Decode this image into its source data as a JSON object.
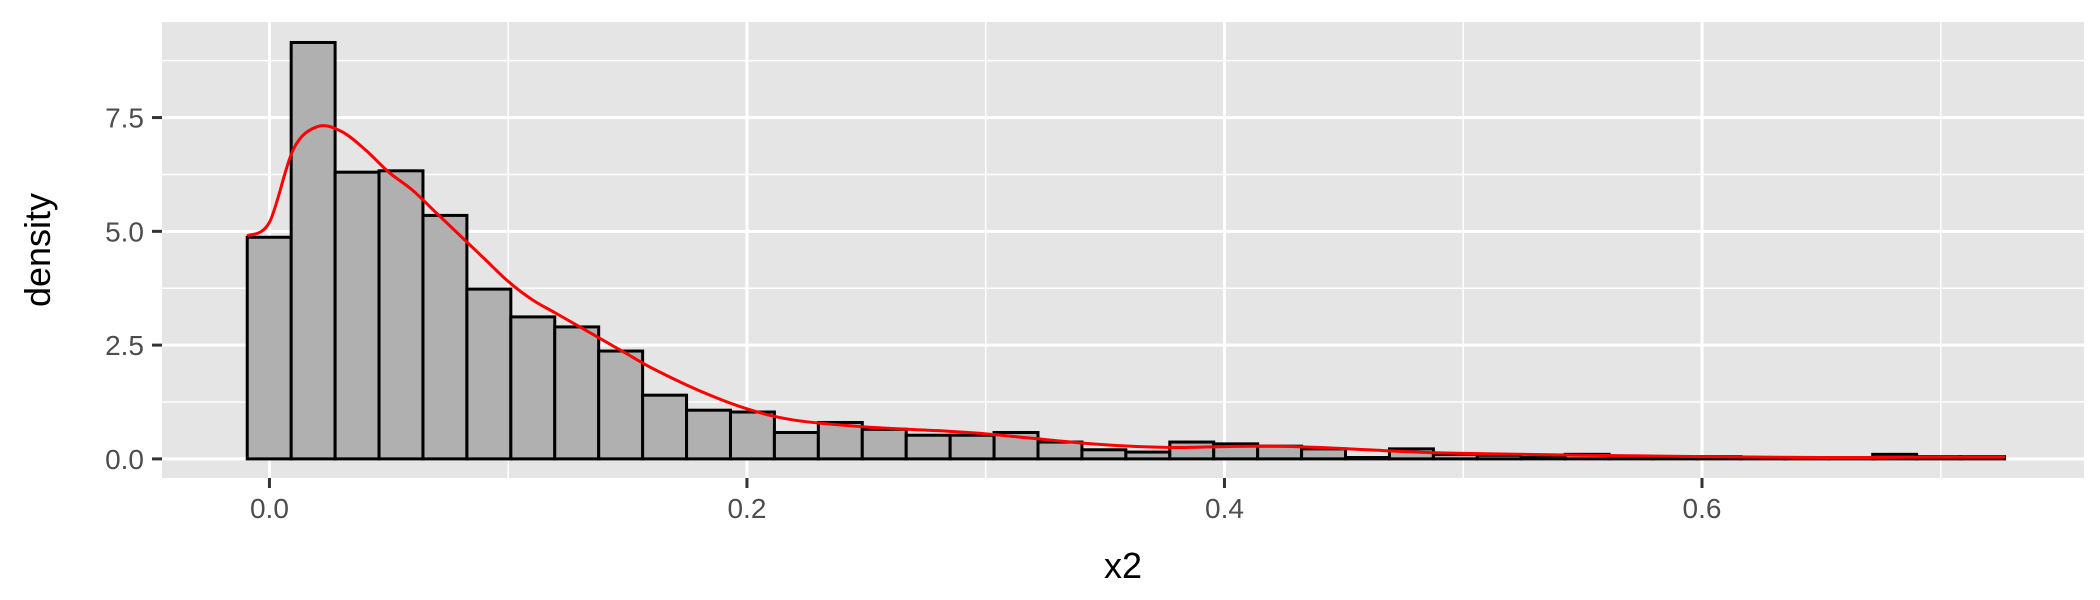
{
  "chart_data": {
    "type": "bar",
    "xlabel": "x2",
    "ylabel": "density",
    "xlim": [
      -0.045,
      0.76
    ],
    "ylim": [
      -0.42,
      9.6
    ],
    "x_ticks": [
      0.0,
      0.2,
      0.4,
      0.6
    ],
    "x_tick_labels": [
      "0.0",
      "0.2",
      "0.4",
      "0.6"
    ],
    "y_ticks": [
      0.0,
      2.5,
      5.0,
      7.5
    ],
    "y_tick_labels": [
      "0.0",
      "2.5",
      "5.0",
      "7.5"
    ],
    "grid": true,
    "bin_start": -0.0093,
    "bin_width": 0.0184,
    "values": [
      4.87,
      9.15,
      6.3,
      6.33,
      5.35,
      3.73,
      3.12,
      2.9,
      2.37,
      1.4,
      1.07,
      1.03,
      0.58,
      0.8,
      0.65,
      0.52,
      0.52,
      0.58,
      0.37,
      0.2,
      0.15,
      0.37,
      0.33,
      0.28,
      0.22,
      0.03,
      0.22,
      0.1,
      0.08,
      0.03,
      0.1,
      0.05,
      0.02,
      0.05,
      0.02,
      0.02,
      0.02,
      0.1,
      0.05,
      0.05
    ],
    "density_curve": {
      "color": "#ff0000",
      "x": [
        -0.0093,
        0.0,
        0.01,
        0.02,
        0.03,
        0.04,
        0.05,
        0.06,
        0.07,
        0.08,
        0.09,
        0.1,
        0.11,
        0.12,
        0.13,
        0.14,
        0.15,
        0.16,
        0.18,
        0.2,
        0.22,
        0.25,
        0.28,
        0.3,
        0.32,
        0.34,
        0.36,
        0.38,
        0.4,
        0.42,
        0.44,
        0.46,
        0.48,
        0.5,
        0.55,
        0.6,
        0.65,
        0.7,
        0.727
      ],
      "y": [
        4.9,
        5.2,
        6.8,
        7.3,
        7.2,
        6.8,
        6.3,
        5.9,
        5.4,
        4.9,
        4.4,
        3.9,
        3.5,
        3.2,
        2.9,
        2.6,
        2.3,
        2.0,
        1.5,
        1.1,
        0.85,
        0.7,
        0.62,
        0.55,
        0.45,
        0.35,
        0.28,
        0.25,
        0.27,
        0.28,
        0.25,
        0.2,
        0.15,
        0.12,
        0.08,
        0.05,
        0.03,
        0.04,
        0.04
      ]
    },
    "colors": {
      "panel": "#e5e5e5",
      "grid": "#ffffff",
      "bar_fill": "#b0b0b0",
      "bar_stroke": "#000000"
    }
  }
}
